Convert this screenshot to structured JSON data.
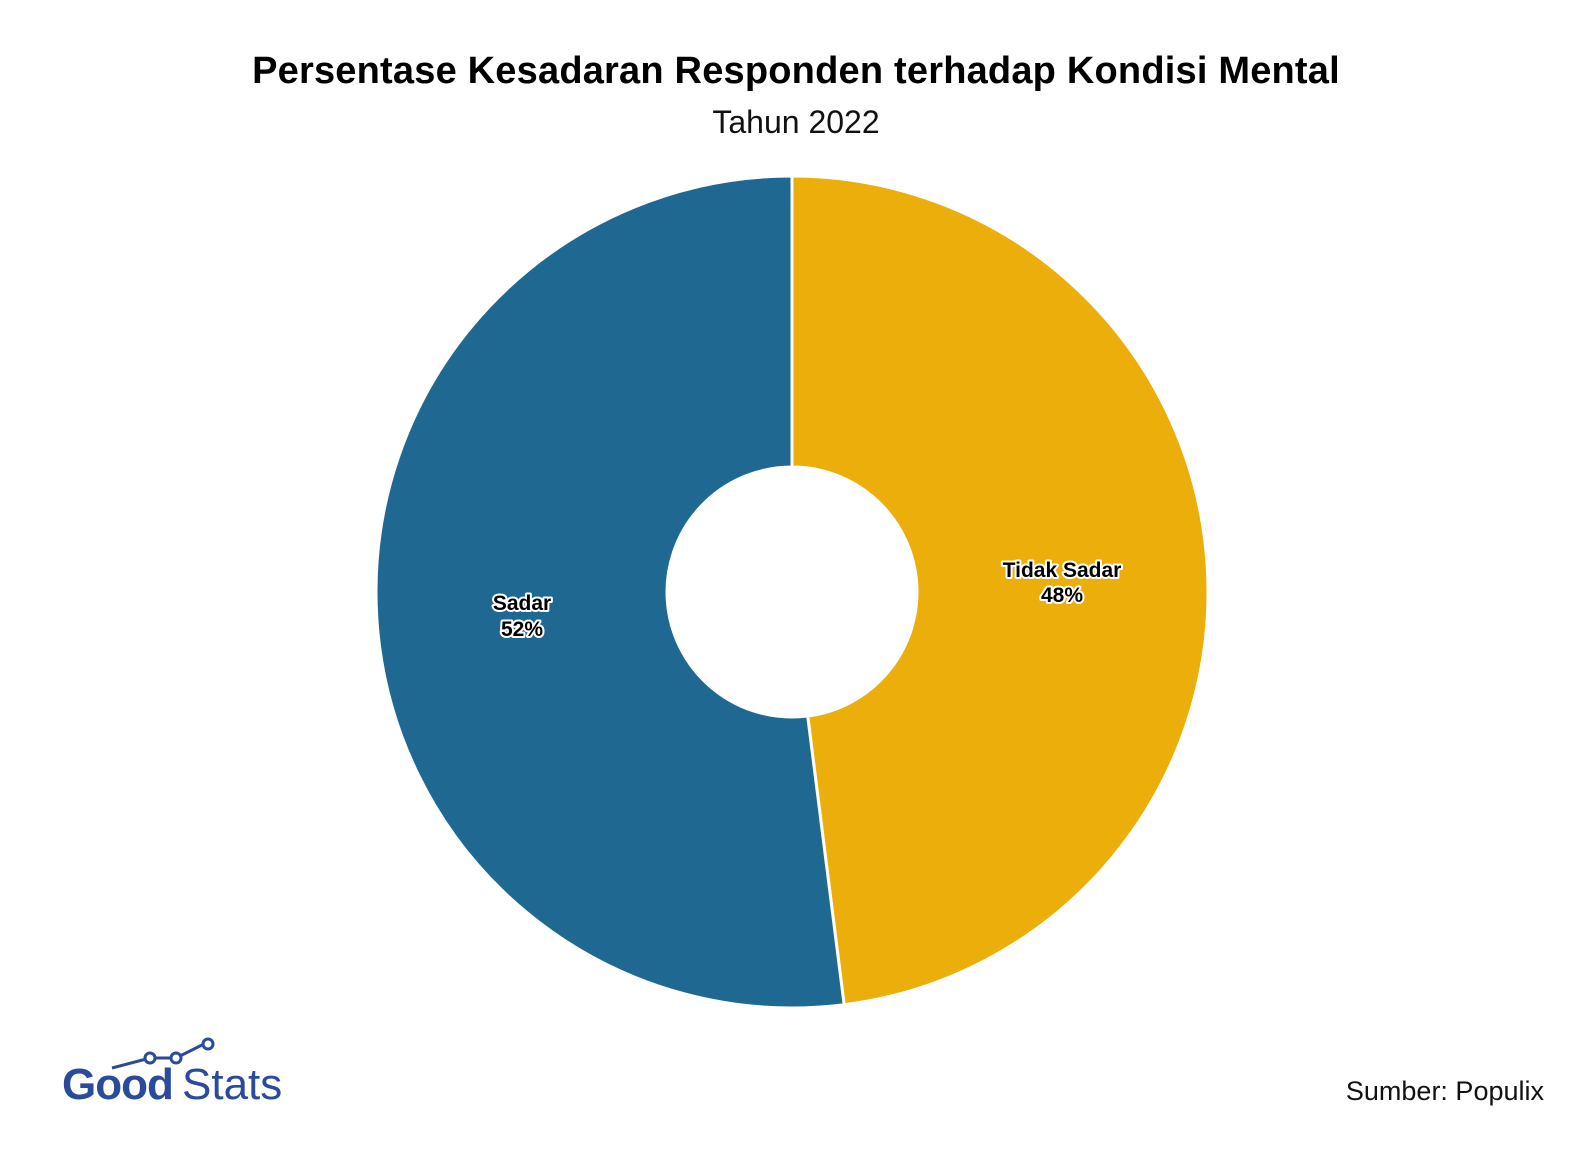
{
  "chart_data": {
    "type": "pie",
    "variant": "donut",
    "title": "Persentase Kesadaran Responden terhadap Kondisi Mental",
    "subtitle": "Tahun 2022",
    "categories": [
      "Tidak Sadar",
      "Sadar"
    ],
    "values": [
      48,
      52
    ],
    "unit": "%",
    "colors": [
      "#ebae0b",
      "#1f6892"
    ],
    "labels": [
      "Tidak Sadar\n48%",
      "Sadar\n52%"
    ],
    "start_angle": "12 o'clock, clockwise",
    "legend": "none (inline labels)"
  },
  "header": {
    "title": "Persentase Kesadaran Responden terhadap Kondisi Mental",
    "subtitle": "Tahun 2022"
  },
  "slices": [
    {
      "name": "Tidak Sadar",
      "value_label": "48%",
      "color": "#ebae0b"
    },
    {
      "name": "Sadar",
      "value_label": "52%",
      "color": "#1f6892"
    }
  ],
  "footer": {
    "logo_part1": "Good",
    "logo_part2": "Stats",
    "logo_color": "#2a4a9b",
    "source": "Sumber: Populix"
  }
}
